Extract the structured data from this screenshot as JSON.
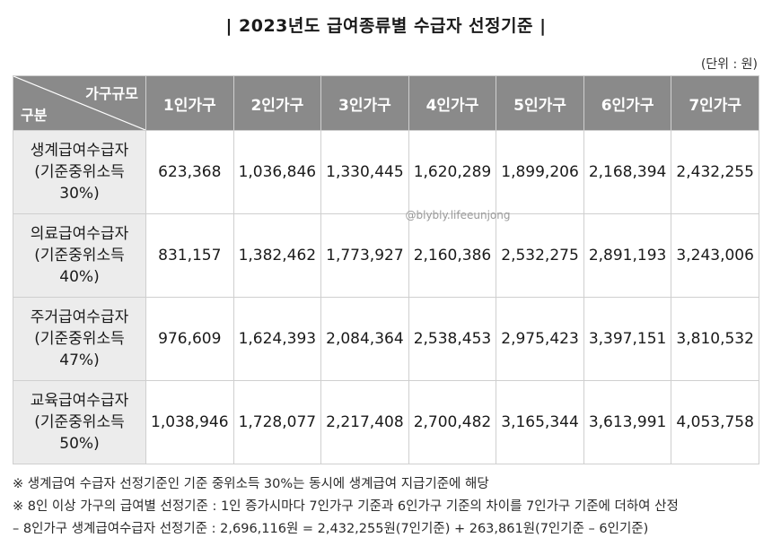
{
  "title": "| 2023년도 급여종류별 수급자 선정기준 |",
  "unit": "(단위 : 원)",
  "watermark": "@blybly.lifeeunjong",
  "table": {
    "corner_top": "가구규모",
    "corner_bottom": "구분",
    "columns": [
      "1인가구",
      "2인가구",
      "3인가구",
      "4인가구",
      "5인가구",
      "6인가구",
      "7인가구"
    ],
    "rows": [
      {
        "label_line1": "생계급여수급자",
        "label_line2": "(기준중위소득",
        "label_line3": "30%)",
        "values": [
          "623,368",
          "1,036,846",
          "1,330,445",
          "1,620,289",
          "1,899,206",
          "2,168,394",
          "2,432,255"
        ]
      },
      {
        "label_line1": "의료급여수급자",
        "label_line2": "(기준중위소득",
        "label_line3": "40%)",
        "values": [
          "831,157",
          "1,382,462",
          "1,773,927",
          "2,160,386",
          "2,532,275",
          "2,891,193",
          "3,243,006"
        ]
      },
      {
        "label_line1": "주거급여수급자",
        "label_line2": "(기준중위소득",
        "label_line3": "47%)",
        "values": [
          "976,609",
          "1,624,393",
          "2,084,364",
          "2,538,453",
          "2,975,423",
          "3,397,151",
          "3,810,532"
        ]
      },
      {
        "label_line1": "교육급여수급자",
        "label_line2": "(기준중위소득",
        "label_line3": "50%)",
        "values": [
          "1,038,946",
          "1,728,077",
          "2,217,408",
          "2,700,482",
          "3,165,344",
          "3,613,991",
          "4,053,758"
        ]
      }
    ]
  },
  "notes": [
    "※ 생계급여 수급자 선정기준인 기준 중위소득 30%는 동시에 생계급여 지급기준에 해당",
    "※ 8인 이상 가구의 급여별 선정기준 : 1인 증가시마다 7인가구 기준과 6인가구 기준의 차이를 7인가구 기준에 더하여 산정",
    "– 8인가구 생계급여수급자 선정기준 : 2,696,116원 = 2,432,255원(7인기준) + 263,861원(7인기준 – 6인기준)"
  ]
}
